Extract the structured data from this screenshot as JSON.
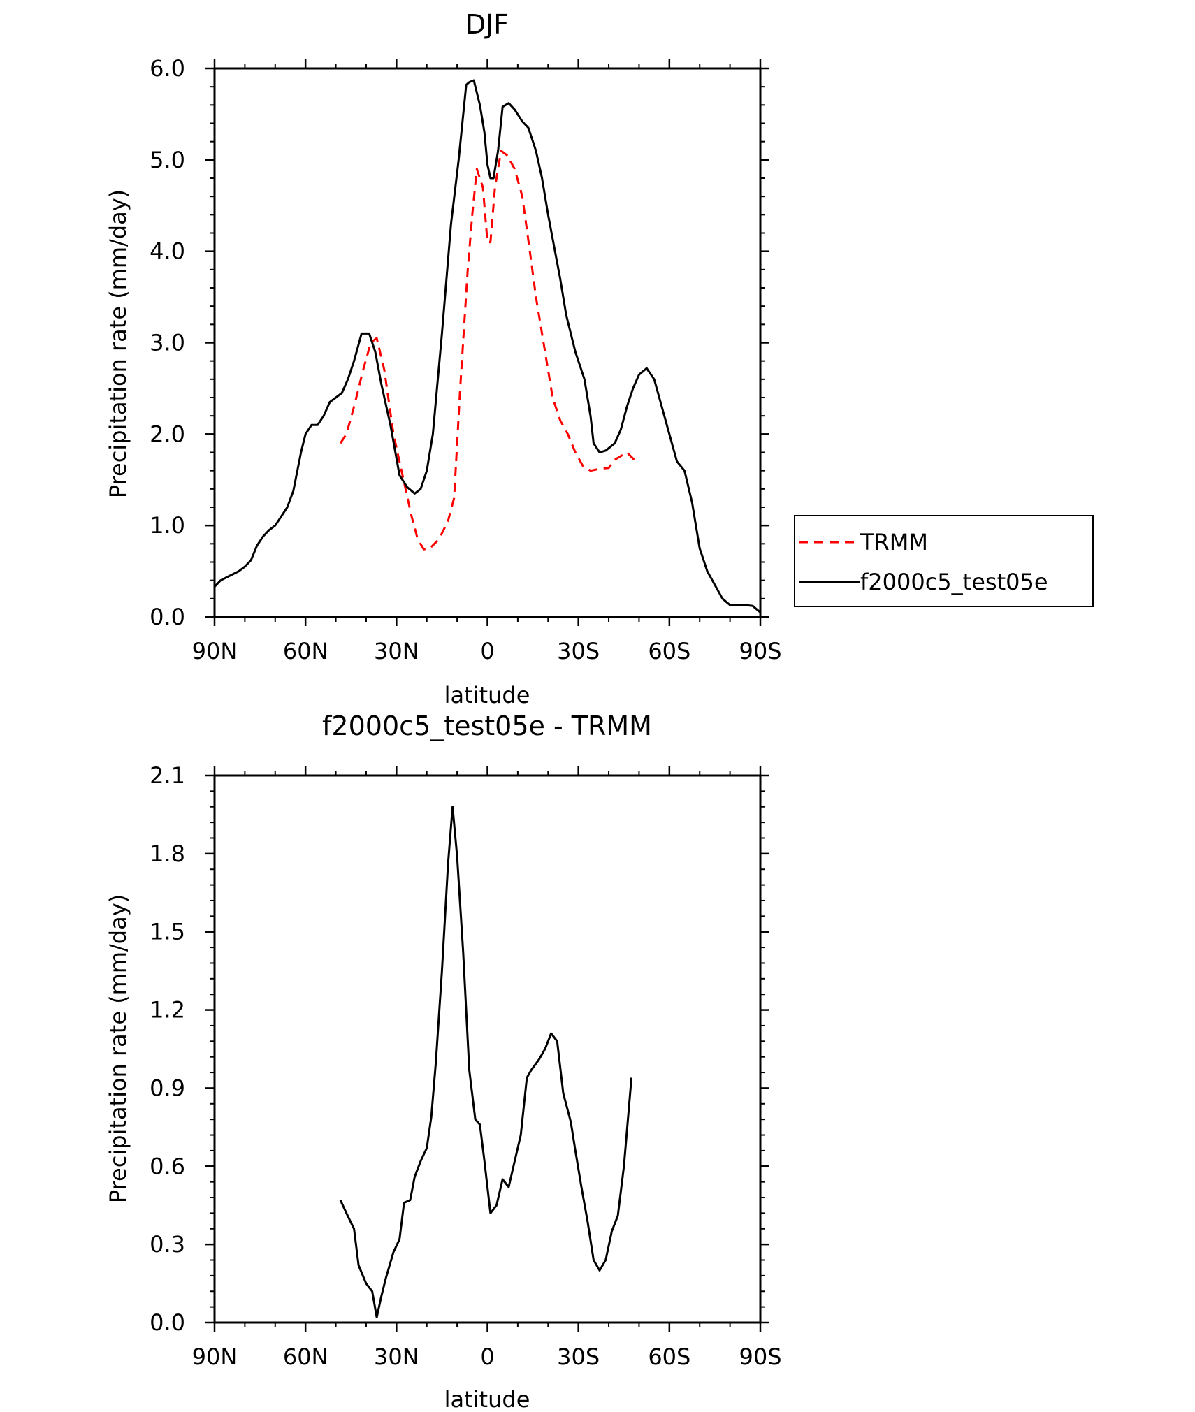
{
  "chart_data": [
    {
      "type": "line",
      "title": "DJF",
      "xlabel": "latitude",
      "ylabel": "Precipitation rate (mm/day)",
      "xlim": [
        90,
        -90
      ],
      "ylim": [
        0,
        6
      ],
      "xticks": [
        90,
        60,
        30,
        0,
        -30,
        -60,
        -90
      ],
      "xtick_labels": [
        "90N",
        "60N",
        "30N",
        "0",
        "30S",
        "60S",
        "90S"
      ],
      "yticks": [
        0,
        1,
        2,
        3,
        4,
        5,
        6
      ],
      "ytick_labels": [
        "0.0",
        "1.0",
        "2.0",
        "3.0",
        "4.0",
        "5.0",
        "6.0"
      ],
      "legend": "right",
      "series": [
        {
          "name": "TRMM",
          "color": "#ff0000",
          "dash": true,
          "x": [
            48.5,
            46.5,
            44,
            41,
            38.5,
            36.5,
            34,
            31,
            28,
            25,
            23,
            21,
            19,
            16,
            13,
            11,
            9,
            6.5,
            5,
            3.5,
            1.5,
            0,
            -1,
            -2.5,
            -4.5,
            -6.5,
            -9,
            -11.5,
            -14,
            -16,
            -18.5,
            -21.5,
            -24,
            -26.5,
            -29,
            -31.5,
            -34,
            -37,
            -40,
            -42,
            -43.5,
            -46,
            -49
          ],
          "y": [
            1.9,
            2.0,
            2.3,
            2.7,
            3.0,
            3.05,
            2.7,
            2.0,
            1.55,
            1.1,
            0.85,
            0.74,
            0.75,
            0.85,
            1.05,
            1.3,
            2.5,
            3.8,
            4.4,
            4.9,
            4.7,
            4.1,
            4.1,
            4.7,
            5.1,
            5.05,
            4.9,
            4.6,
            4.0,
            3.5,
            3.0,
            2.4,
            2.15,
            2.0,
            1.8,
            1.65,
            1.6,
            1.62,
            1.63,
            1.72,
            1.75,
            1.8,
            1.7
          ]
        },
        {
          "name": "f2000c5_test05e",
          "color": "#000000",
          "dash": false,
          "x": [
            90,
            88,
            85,
            82,
            80,
            78,
            76,
            74,
            72,
            70,
            68,
            66,
            64,
            61.5,
            60,
            58,
            56,
            54,
            52,
            50,
            48,
            46,
            44,
            41.5,
            39,
            37,
            35,
            32,
            29,
            26.5,
            24,
            22,
            20,
            18,
            15,
            12,
            9.5,
            7,
            6,
            4.5,
            2.5,
            1,
            0,
            -1,
            -2,
            -3.5,
            -5,
            -7,
            -9,
            -11.5,
            -13.5,
            -16,
            -18,
            -20,
            -24,
            -26,
            -29,
            -32,
            -34,
            -35,
            -37,
            -39,
            -42,
            -44,
            -46,
            -48,
            -50,
            -52.5,
            -55,
            -57.5,
            -60,
            -62.5,
            -65,
            -67.5,
            -70,
            -72.5,
            -75,
            -77.5,
            -80,
            -82.5,
            -85,
            -87.5,
            -90
          ],
          "y": [
            0.33,
            0.4,
            0.45,
            0.5,
            0.55,
            0.62,
            0.78,
            0.88,
            0.95,
            1.0,
            1.1,
            1.2,
            1.38,
            1.8,
            2.0,
            2.1,
            2.1,
            2.2,
            2.35,
            2.4,
            2.45,
            2.6,
            2.8,
            3.1,
            3.1,
            2.9,
            2.55,
            2.1,
            1.55,
            1.42,
            1.35,
            1.4,
            1.6,
            2.0,
            3.1,
            4.3,
            5.0,
            5.82,
            5.85,
            5.87,
            5.6,
            5.3,
            4.95,
            4.8,
            4.8,
            5.1,
            5.58,
            5.62,
            5.55,
            5.42,
            5.35,
            5.1,
            4.8,
            4.4,
            3.7,
            3.3,
            2.9,
            2.6,
            2.2,
            1.9,
            1.8,
            1.82,
            1.9,
            2.05,
            2.3,
            2.5,
            2.65,
            2.72,
            2.6,
            2.3,
            2.0,
            1.7,
            1.6,
            1.25,
            0.75,
            0.5,
            0.35,
            0.2,
            0.13,
            0.13,
            0.13,
            0.12,
            0.05
          ]
        }
      ]
    },
    {
      "type": "line",
      "title": "f2000c5_test05e - TRMM",
      "xlabel": "latitude",
      "ylabel": "Precipitation rate (mm/day)",
      "xlim": [
        90,
        -90
      ],
      "ylim": [
        0,
        2.1
      ],
      "xticks": [
        90,
        60,
        30,
        0,
        -30,
        -60,
        -90
      ],
      "xtick_labels": [
        "90N",
        "60N",
        "30N",
        "0",
        "30S",
        "60S",
        "90S"
      ],
      "yticks": [
        0,
        0.3,
        0.6,
        0.9,
        1.2,
        1.5,
        1.8,
        2.1
      ],
      "ytick_labels": [
        "0.0",
        "0.3",
        "0.6",
        "0.9",
        "1.2",
        "1.5",
        "1.8",
        "2.1"
      ],
      "series": [
        {
          "name": "f2000c5_test05e - TRMM",
          "color": "#000000",
          "dash": false,
          "x": [
            48.5,
            46.5,
            44,
            42.5,
            40,
            38,
            36.5,
            35,
            33.5,
            31,
            29,
            27.5,
            25.5,
            24,
            22,
            20,
            18.5,
            17,
            15,
            13,
            11.5,
            10,
            8,
            6,
            4,
            2.5,
            1,
            -1,
            -3,
            -5,
            -7,
            -9,
            -11,
            -13,
            -14.5,
            -17,
            -19,
            -21,
            -23,
            -25,
            -27.5,
            -29,
            -31,
            -33,
            -35,
            -37,
            -39,
            -41,
            -43,
            -45,
            -47.5
          ],
          "y": [
            0.47,
            0.42,
            0.36,
            0.22,
            0.15,
            0.12,
            0.02,
            0.1,
            0.17,
            0.27,
            0.32,
            0.46,
            0.47,
            0.56,
            0.62,
            0.67,
            0.79,
            1.0,
            1.35,
            1.76,
            1.98,
            1.79,
            1.42,
            0.97,
            0.78,
            0.76,
            0.62,
            0.42,
            0.45,
            0.55,
            0.52,
            0.62,
            0.72,
            0.94,
            0.97,
            1.01,
            1.05,
            1.11,
            1.08,
            0.88,
            0.77,
            0.66,
            0.52,
            0.39,
            0.24,
            0.2,
            0.24,
            0.35,
            0.41,
            0.6,
            0.94
          ]
        }
      ]
    }
  ]
}
